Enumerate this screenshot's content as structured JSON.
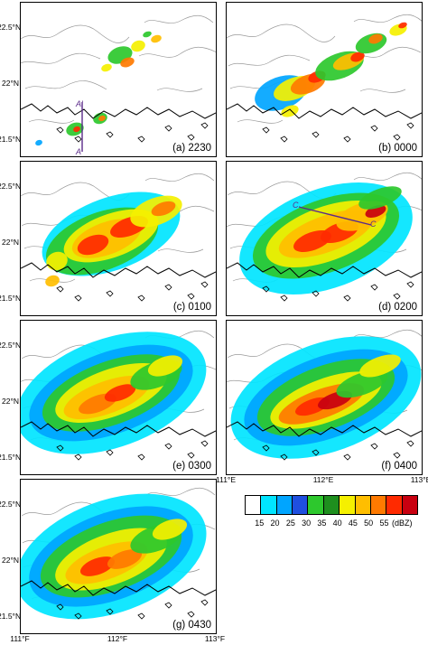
{
  "panels": [
    {
      "label": "(a) 2230"
    },
    {
      "label": "(b) 0000"
    },
    {
      "label": "(c) 0100"
    },
    {
      "label": "(d) 0200"
    },
    {
      "label": "(e) 0300"
    },
    {
      "label": "(f) 0400"
    },
    {
      "label": "(g) 0430"
    }
  ],
  "axes": {
    "lat_labels": [
      "22.5°N",
      "22°N",
      "21.5°N"
    ],
    "lon_labels_f": [
      "111°E",
      "112°E",
      "113°E"
    ],
    "lon_labels_g": [
      "111°F",
      "112°F",
      "113°F"
    ]
  },
  "cross_sections": {
    "a_top": "A'",
    "a_bottom": "A",
    "d_c_left": "C",
    "d_c_right": "C"
  },
  "colorbar": {
    "ticks": [
      "15",
      "20",
      "25",
      "30",
      "35",
      "40",
      "45",
      "50",
      "55"
    ],
    "unit": "(dBZ)",
    "colors": [
      "#ffffff",
      "#00e5ff",
      "#00a5ff",
      "#1f4fe0",
      "#2dc82d",
      "#1e8f1e",
      "#f5f000",
      "#ffbe00",
      "#ff7a00",
      "#ff2a00",
      "#c80010"
    ]
  }
}
